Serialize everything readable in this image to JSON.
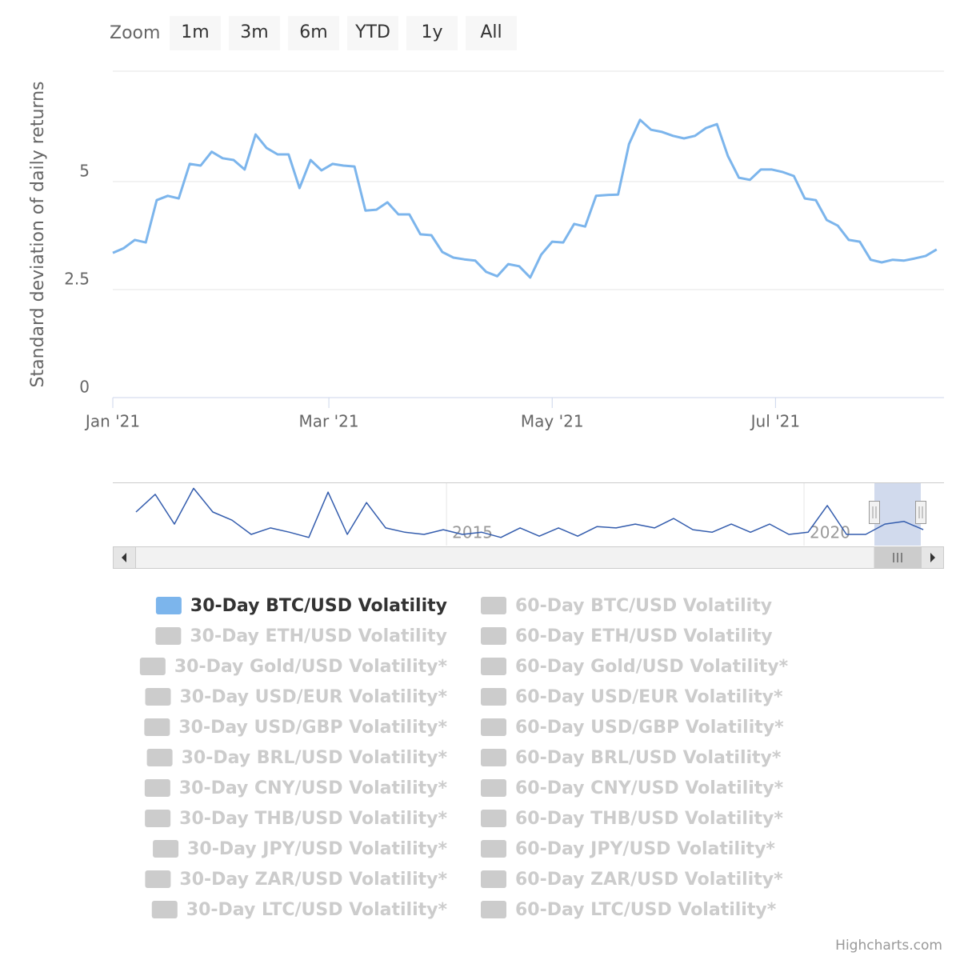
{
  "range_selector": {
    "label": "Zoom",
    "buttons": [
      "1m",
      "3m",
      "6m",
      "YTD",
      "1y",
      "All"
    ]
  },
  "chart_data": [
    {
      "type": "line",
      "y_axis_label": "Standard deviation of daily returns",
      "xlim": [
        0,
        75.67
      ],
      "xticks": [
        {
          "value": 0,
          "label": "Jan '21"
        },
        {
          "value": 19.67,
          "label": "Mar '21"
        },
        {
          "value": 40,
          "label": "May '21"
        },
        {
          "value": 60.33,
          "label": "Jul '21"
        }
      ],
      "ylim": [
        0,
        7.5
      ],
      "yticks": [
        0,
        2.5,
        5
      ],
      "grid": true,
      "series": [
        {
          "name": "30-Day BTC/USD Volatility",
          "color": "#7cb5ec",
          "visible": true,
          "values": [
            3.35,
            3.46,
            3.65,
            3.59,
            4.57,
            4.67,
            4.61,
            5.41,
            5.37,
            5.69,
            5.54,
            5.5,
            5.28,
            6.09,
            5.78,
            5.63,
            5.63,
            4.85,
            5.5,
            5.26,
            5.41,
            5.37,
            5.35,
            4.33,
            4.35,
            4.52,
            4.24,
            4.24,
            3.78,
            3.76,
            3.37,
            3.24,
            3.2,
            3.17,
            2.91,
            2.81,
            3.09,
            3.04,
            2.78,
            3.31,
            3.61,
            3.59,
            4.02,
            3.96,
            4.67,
            4.69,
            4.7,
            5.87,
            6.43,
            6.2,
            6.15,
            6.06,
            6.0,
            6.06,
            6.24,
            6.33,
            5.59,
            5.09,
            5.04,
            5.28,
            5.28,
            5.22,
            5.13,
            4.61,
            4.57,
            4.11,
            3.98,
            3.65,
            3.61,
            3.19,
            3.13,
            3.19,
            3.17,
            3.22,
            3.28,
            3.43
          ]
        },
        {
          "name": "60-Day BTC/USD Volatility",
          "color": "#cccccc",
          "visible": false
        },
        {
          "name": "30-Day ETH/USD Volatility",
          "color": "#cccccc",
          "visible": false
        },
        {
          "name": "60-Day ETH/USD Volatility",
          "color": "#cccccc",
          "visible": false
        },
        {
          "name": "30-Day Gold/USD Volatility*",
          "color": "#cccccc",
          "visible": false
        },
        {
          "name": "60-Day Gold/USD Volatility*",
          "color": "#cccccc",
          "visible": false
        },
        {
          "name": "30-Day USD/EUR Volatility*",
          "color": "#cccccc",
          "visible": false
        },
        {
          "name": "60-Day USD/EUR Volatility*",
          "color": "#cccccc",
          "visible": false
        },
        {
          "name": "30-Day USD/GBP Volatility*",
          "color": "#cccccc",
          "visible": false
        },
        {
          "name": "60-Day USD/GBP Volatility*",
          "color": "#cccccc",
          "visible": false
        },
        {
          "name": "30-Day BRL/USD Volatility*",
          "color": "#cccccc",
          "visible": false
        },
        {
          "name": "60-Day BRL/USD Volatility*",
          "color": "#cccccc",
          "visible": false
        },
        {
          "name": "30-Day CNY/USD Volatility*",
          "color": "#cccccc",
          "visible": false
        },
        {
          "name": "60-Day CNY/USD Volatility*",
          "color": "#cccccc",
          "visible": false
        },
        {
          "name": "30-Day THB/USD Volatility*",
          "color": "#cccccc",
          "visible": false
        },
        {
          "name": "60-Day THB/USD Volatility*",
          "color": "#cccccc",
          "visible": false
        },
        {
          "name": "30-Day JPY/USD Volatility*",
          "color": "#cccccc",
          "visible": false
        },
        {
          "name": "60-Day JPY/USD Volatility*",
          "color": "#cccccc",
          "visible": false
        },
        {
          "name": "30-Day ZAR/USD Volatility*",
          "color": "#cccccc",
          "visible": false
        },
        {
          "name": "60-Day ZAR/USD Volatility*",
          "color": "#cccccc",
          "visible": false
        },
        {
          "name": "30-Day LTC/USD Volatility*",
          "color": "#cccccc",
          "visible": false
        },
        {
          "name": "60-Day LTC/USD Volatility*",
          "color": "#cccccc",
          "visible": false
        }
      ]
    },
    {
      "type": "line",
      "xlim": [
        -1.21,
        42.08
      ],
      "xticks": [
        {
          "value": 16.17,
          "label": "2015"
        },
        {
          "value": 34.79,
          "label": "2020"
        }
      ],
      "ylim": [
        0,
        14.3
      ],
      "series": [
        {
          "color": "#335cad",
          "values": [
            7.8,
            11.9,
            5.0,
            13.3,
            7.8,
            5.9,
            2.6,
            4.1,
            3.1,
            1.9,
            12.4,
            2.6,
            10.0,
            4.1,
            3.1,
            2.6,
            3.7,
            2.6,
            3.1,
            1.9,
            4.1,
            2.2,
            4.1,
            2.2,
            4.4,
            4.1,
            5.0,
            4.1,
            6.3,
            3.7,
            3.1,
            5.0,
            3.1,
            5.0,
            2.6,
            3.1,
            9.3,
            2.6,
            2.6,
            5.0,
            5.6,
            3.7
          ]
        }
      ]
    }
  ],
  "credits": "Highcharts.com"
}
